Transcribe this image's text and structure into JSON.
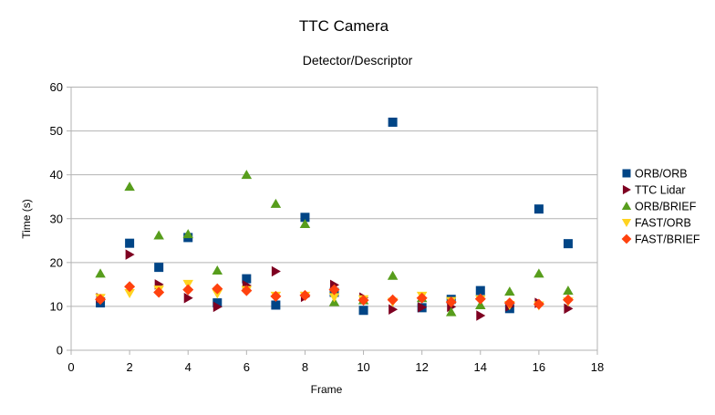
{
  "chart_data": {
    "type": "scatter",
    "title": "TTC Camera",
    "subtitle": "Detector/Descriptor",
    "xlabel": "Frame",
    "ylabel": "Time (s)",
    "xlim": [
      0,
      18
    ],
    "ylim": [
      0,
      60
    ],
    "x_ticks": [
      0,
      2,
      4,
      6,
      8,
      10,
      12,
      14,
      16,
      18
    ],
    "y_ticks": [
      0,
      10,
      20,
      30,
      40,
      50,
      60
    ],
    "grid": "horizontal",
    "legend_position": "right",
    "x": [
      1,
      2,
      3,
      4,
      5,
      6,
      7,
      8,
      9,
      10,
      11,
      12,
      13,
      14,
      15,
      16,
      17
    ],
    "series": [
      {
        "name": "ORB/ORB",
        "marker": "square",
        "color": "#004586",
        "values": [
          10.8,
          24.4,
          18.9,
          25.7,
          10.8,
          16.3,
          10.3,
          30.3,
          13.2,
          9.1,
          52.0,
          9.7,
          11.6,
          13.6,
          9.5,
          32.2,
          24.3
        ]
      },
      {
        "name": "TTC Lidar",
        "marker": "triangle-right",
        "color": "#7e0021",
        "values": [
          11.9,
          21.8,
          15.0,
          11.9,
          9.9,
          14.8,
          18.0,
          12.2,
          14.9,
          12.0,
          9.3,
          9.8,
          9.9,
          7.9,
          10.0,
          10.8,
          9.5
        ]
      },
      {
        "name": "ORB/BRIEF",
        "marker": "triangle-up",
        "color": "#579d1c",
        "values": [
          17.5,
          37.3,
          26.2,
          26.5,
          18.2,
          40.0,
          33.4,
          28.8,
          11.0,
          11.4,
          17.0,
          11.9,
          8.7,
          10.3,
          13.4,
          17.5,
          13.6
        ]
      },
      {
        "name": "FAST/ORB",
        "marker": "triangle-down",
        "color": "#ffd320",
        "values": [
          11.9,
          13.0,
          13.8,
          15.1,
          12.9,
          13.7,
          12.4,
          12.4,
          12.1,
          11.6,
          11.0,
          12.4,
          11.2,
          11.6,
          10.3,
          10.2,
          11.1
        ]
      },
      {
        "name": "FAST/BRIEF",
        "marker": "diamond",
        "color": "#ff420e",
        "values": [
          11.6,
          14.5,
          13.2,
          13.8,
          14.0,
          13.6,
          12.3,
          12.5,
          13.8,
          11.4,
          11.5,
          11.9,
          11.0,
          11.7,
          10.8,
          10.5,
          11.5
        ]
      }
    ]
  }
}
